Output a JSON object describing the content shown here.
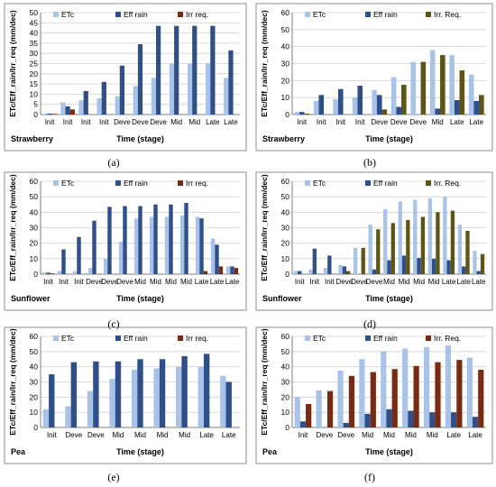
{
  "chart_data": [
    {
      "type": "bar",
      "panel": "(a)",
      "crop": "Strawberry",
      "xlabel": "Time (stage)",
      "ylabel": "ETc/Eff_rain/Irr_req (mm/dec)",
      "ylim": [
        0,
        50
      ],
      "yticks": [
        0,
        5,
        10,
        15,
        20,
        25,
        30,
        35,
        40,
        45,
        50
      ],
      "legend_position": "top",
      "categories": [
        "Init",
        "Init",
        "Init",
        "Init",
        "Deve",
        "Deve",
        "Deve",
        "Mid",
        "Mid",
        "Late",
        "Late"
      ],
      "series": [
        {
          "name": "ETc",
          "color": "#a9c3e8",
          "values": [
            0.5,
            6,
            7,
            8,
            9,
            14,
            18,
            25,
            25,
            25,
            18
          ]
        },
        {
          "name": "Eff rain",
          "color": "#2e4f8a",
          "values": [
            0.5,
            4,
            11.5,
            16,
            24,
            34.5,
            43.5,
            43.5,
            43.5,
            43.5,
            31.5
          ]
        },
        {
          "name": "Irr req.",
          "color": "#7b2a12",
          "values": [
            0.3,
            2.5,
            0,
            0,
            0,
            0,
            0,
            0,
            0,
            0,
            0
          ]
        }
      ]
    },
    {
      "type": "bar",
      "panel": "(b)",
      "crop": "Strawberry",
      "xlabel": "Time (stage)",
      "ylabel": "ETc/Eff_rain/Irr_req (mm/dec)",
      "ylim": [
        0,
        60
      ],
      "yticks": [
        0,
        10,
        20,
        30,
        40,
        50,
        60
      ],
      "legend_position": "top",
      "categories": [
        "Init",
        "Init",
        "Init",
        "Init",
        "Deve",
        "Deve",
        "Deve",
        "Mid",
        "Late",
        "Late"
      ],
      "series": [
        {
          "name": "ETc",
          "color": "#a9c3e8",
          "values": [
            1.5,
            8,
            9,
            10,
            14.5,
            22,
            31,
            38,
            35,
            23.5
          ]
        },
        {
          "name": "Eff rain",
          "color": "#2e4f8a",
          "values": [
            1.5,
            11.5,
            15,
            17,
            11.5,
            4.5,
            0,
            3.5,
            8.5,
            8
          ]
        },
        {
          "name": "Irr. Req.",
          "color": "#5e5415",
          "values": [
            0.5,
            0,
            0,
            0,
            3,
            17.5,
            31,
            35,
            26,
            11.5
          ]
        }
      ]
    },
    {
      "type": "bar",
      "panel": "(c)",
      "crop": "Sunflower",
      "xlabel": "Time (stage)",
      "ylabel": "ETc/Eff_rain/Irr_req (mm/dec)",
      "ylim": [
        0,
        60
      ],
      "yticks": [
        0,
        10,
        20,
        30,
        40,
        50,
        60
      ],
      "legend_position": "top",
      "categories": [
        "Init",
        "Init",
        "Init",
        "Deve",
        "Deve",
        "Deve",
        "Mid",
        "Mid",
        "Mid",
        "Mid",
        "Late",
        "Late",
        "Late"
      ],
      "series": [
        {
          "name": "ETc",
          "color": "#a9c3e8",
          "values": [
            1,
            2,
            2,
            4,
            10,
            21,
            36,
            37,
            37,
            38,
            37,
            23,
            5
          ]
        },
        {
          "name": "Eff rain",
          "color": "#2e4f8a",
          "values": [
            1,
            16,
            24,
            34.5,
            43.5,
            44,
            44,
            45,
            45,
            46,
            36,
            19,
            5
          ]
        },
        {
          "name": "Irr req.",
          "color": "#7b2a12",
          "values": [
            0.5,
            0,
            0,
            0,
            0,
            0,
            0,
            0,
            0,
            0,
            2,
            5,
            4
          ]
        }
      ]
    },
    {
      "type": "bar",
      "panel": "(d)",
      "crop": "Sunflower",
      "xlabel": "Time (stage)",
      "ylabel": "ETc/Eff_rain/Irr_req (mm/dec)",
      "ylim": [
        0,
        60
      ],
      "yticks": [
        0,
        10,
        20,
        30,
        40,
        50,
        60
      ],
      "legend_position": "top",
      "categories": [
        "Init",
        "Init",
        "Init",
        "Deve",
        "Deve",
        "Deve",
        "Mid",
        "Mid",
        "Mid",
        "Mid",
        "Late",
        "Late",
        "Late"
      ],
      "series": [
        {
          "name": "ETc",
          "color": "#a9c3e8",
          "values": [
            2,
            3,
            4,
            6,
            17,
            32,
            42,
            47,
            48,
            49,
            50,
            32,
            15
          ]
        },
        {
          "name": "Eff rain",
          "color": "#2e4f8a",
          "values": [
            2,
            16.5,
            12,
            5,
            0,
            3,
            9,
            12,
            10.5,
            10,
            9,
            5,
            2
          ]
        },
        {
          "name": "Irr. Req.",
          "color": "#5e5415",
          "values": [
            0,
            0,
            0,
            2,
            17,
            29,
            33,
            35,
            37,
            40,
            41,
            28,
            13
          ]
        }
      ]
    },
    {
      "type": "bar",
      "panel": "(e)",
      "crop": "Pea",
      "xlabel": "Time (stage)",
      "ylabel": "ETc/Eff_rain/Irr_req (mm/dec)",
      "ylim": [
        0,
        60
      ],
      "yticks": [
        0,
        10,
        20,
        30,
        40,
        50,
        60
      ],
      "legend_position": "top",
      "categories": [
        "Init",
        "Deve",
        "Deve",
        "Mid",
        "Mid",
        "Mid",
        "Mid",
        "Late",
        "Late"
      ],
      "series": [
        {
          "name": "ETc",
          "color": "#a9c3e8",
          "values": [
            12,
            14,
            24,
            32,
            38,
            39,
            40,
            40,
            34
          ]
        },
        {
          "name": "Eff rain",
          "color": "#2e4f8a",
          "values": [
            35,
            43,
            43.5,
            43.5,
            45,
            45,
            47,
            48.5,
            30
          ]
        },
        {
          "name": "Irr req.",
          "color": "#7b2a12",
          "values": [
            0,
            0,
            0,
            0,
            0,
            0,
            0,
            0,
            0
          ]
        }
      ]
    },
    {
      "type": "bar",
      "panel": "(f)",
      "crop": "Pea",
      "xlabel": "Time (stage)",
      "ylabel": "ETc/Eff_rain/Irr_req (mm/dec)",
      "ylim": [
        0,
        60
      ],
      "yticks": [
        0,
        10,
        20,
        30,
        40,
        50,
        60
      ],
      "legend_position": "top",
      "categories": [
        "Init",
        "Deve",
        "Deve",
        "Mid",
        "Mid",
        "Mid",
        "Mid",
        "Late",
        "Late"
      ],
      "series": [
        {
          "name": "ETc",
          "color": "#a9c3e8",
          "values": [
            20,
            24.5,
            37.5,
            45,
            50,
            52,
            53,
            54,
            46
          ]
        },
        {
          "name": "Eff rain",
          "color": "#2e4f8a",
          "values": [
            4,
            0,
            3,
            9,
            12,
            11,
            10,
            10,
            7
          ]
        },
        {
          "name": "Irr. Req.",
          "color": "#7b2a12",
          "values": [
            15.5,
            24,
            34,
            36.5,
            38.5,
            40.5,
            43,
            44.5,
            38
          ]
        }
      ]
    }
  ]
}
